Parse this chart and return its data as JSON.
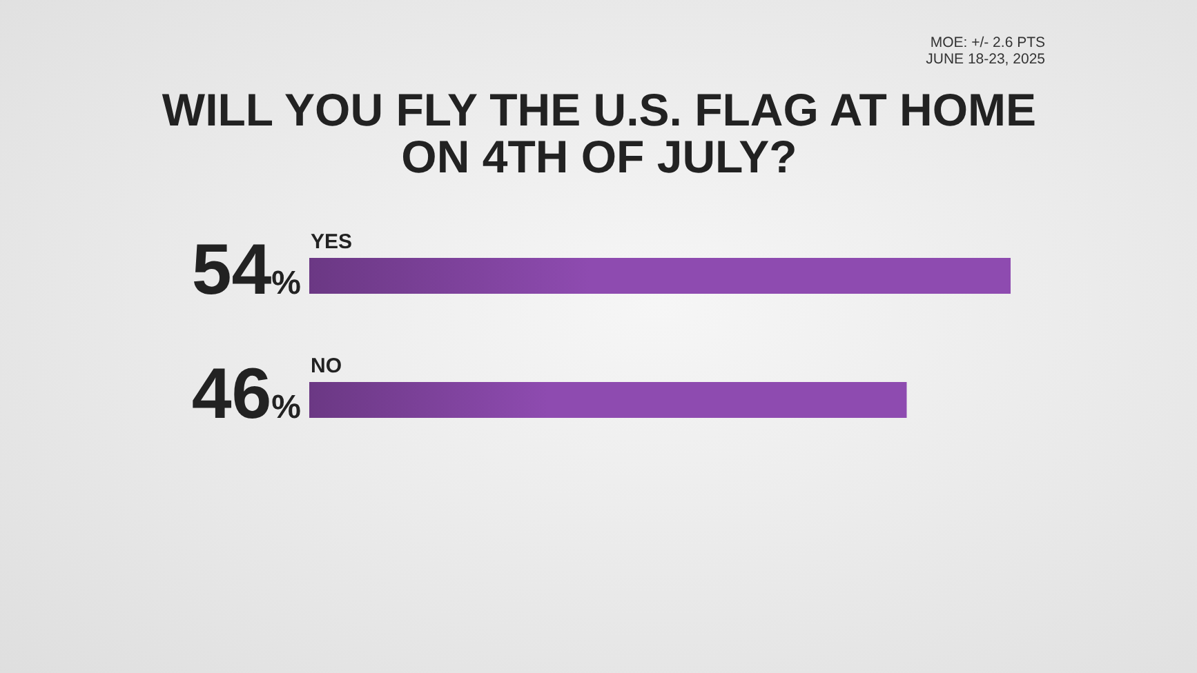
{
  "chart_data": {
    "type": "bar",
    "orientation": "horizontal",
    "title": "WILL YOU FLY THE U.S. FLAG AT HOME ON 4TH OF JULY?",
    "categories": [
      "YES",
      "NO"
    ],
    "values": [
      54,
      46
    ],
    "value_labels": [
      "54%",
      "46%"
    ],
    "color": "#8e4bb0",
    "annotations": [
      "MOE: +/- 2.6 PTS",
      "JUNE 18-23, 2025"
    ]
  }
}
